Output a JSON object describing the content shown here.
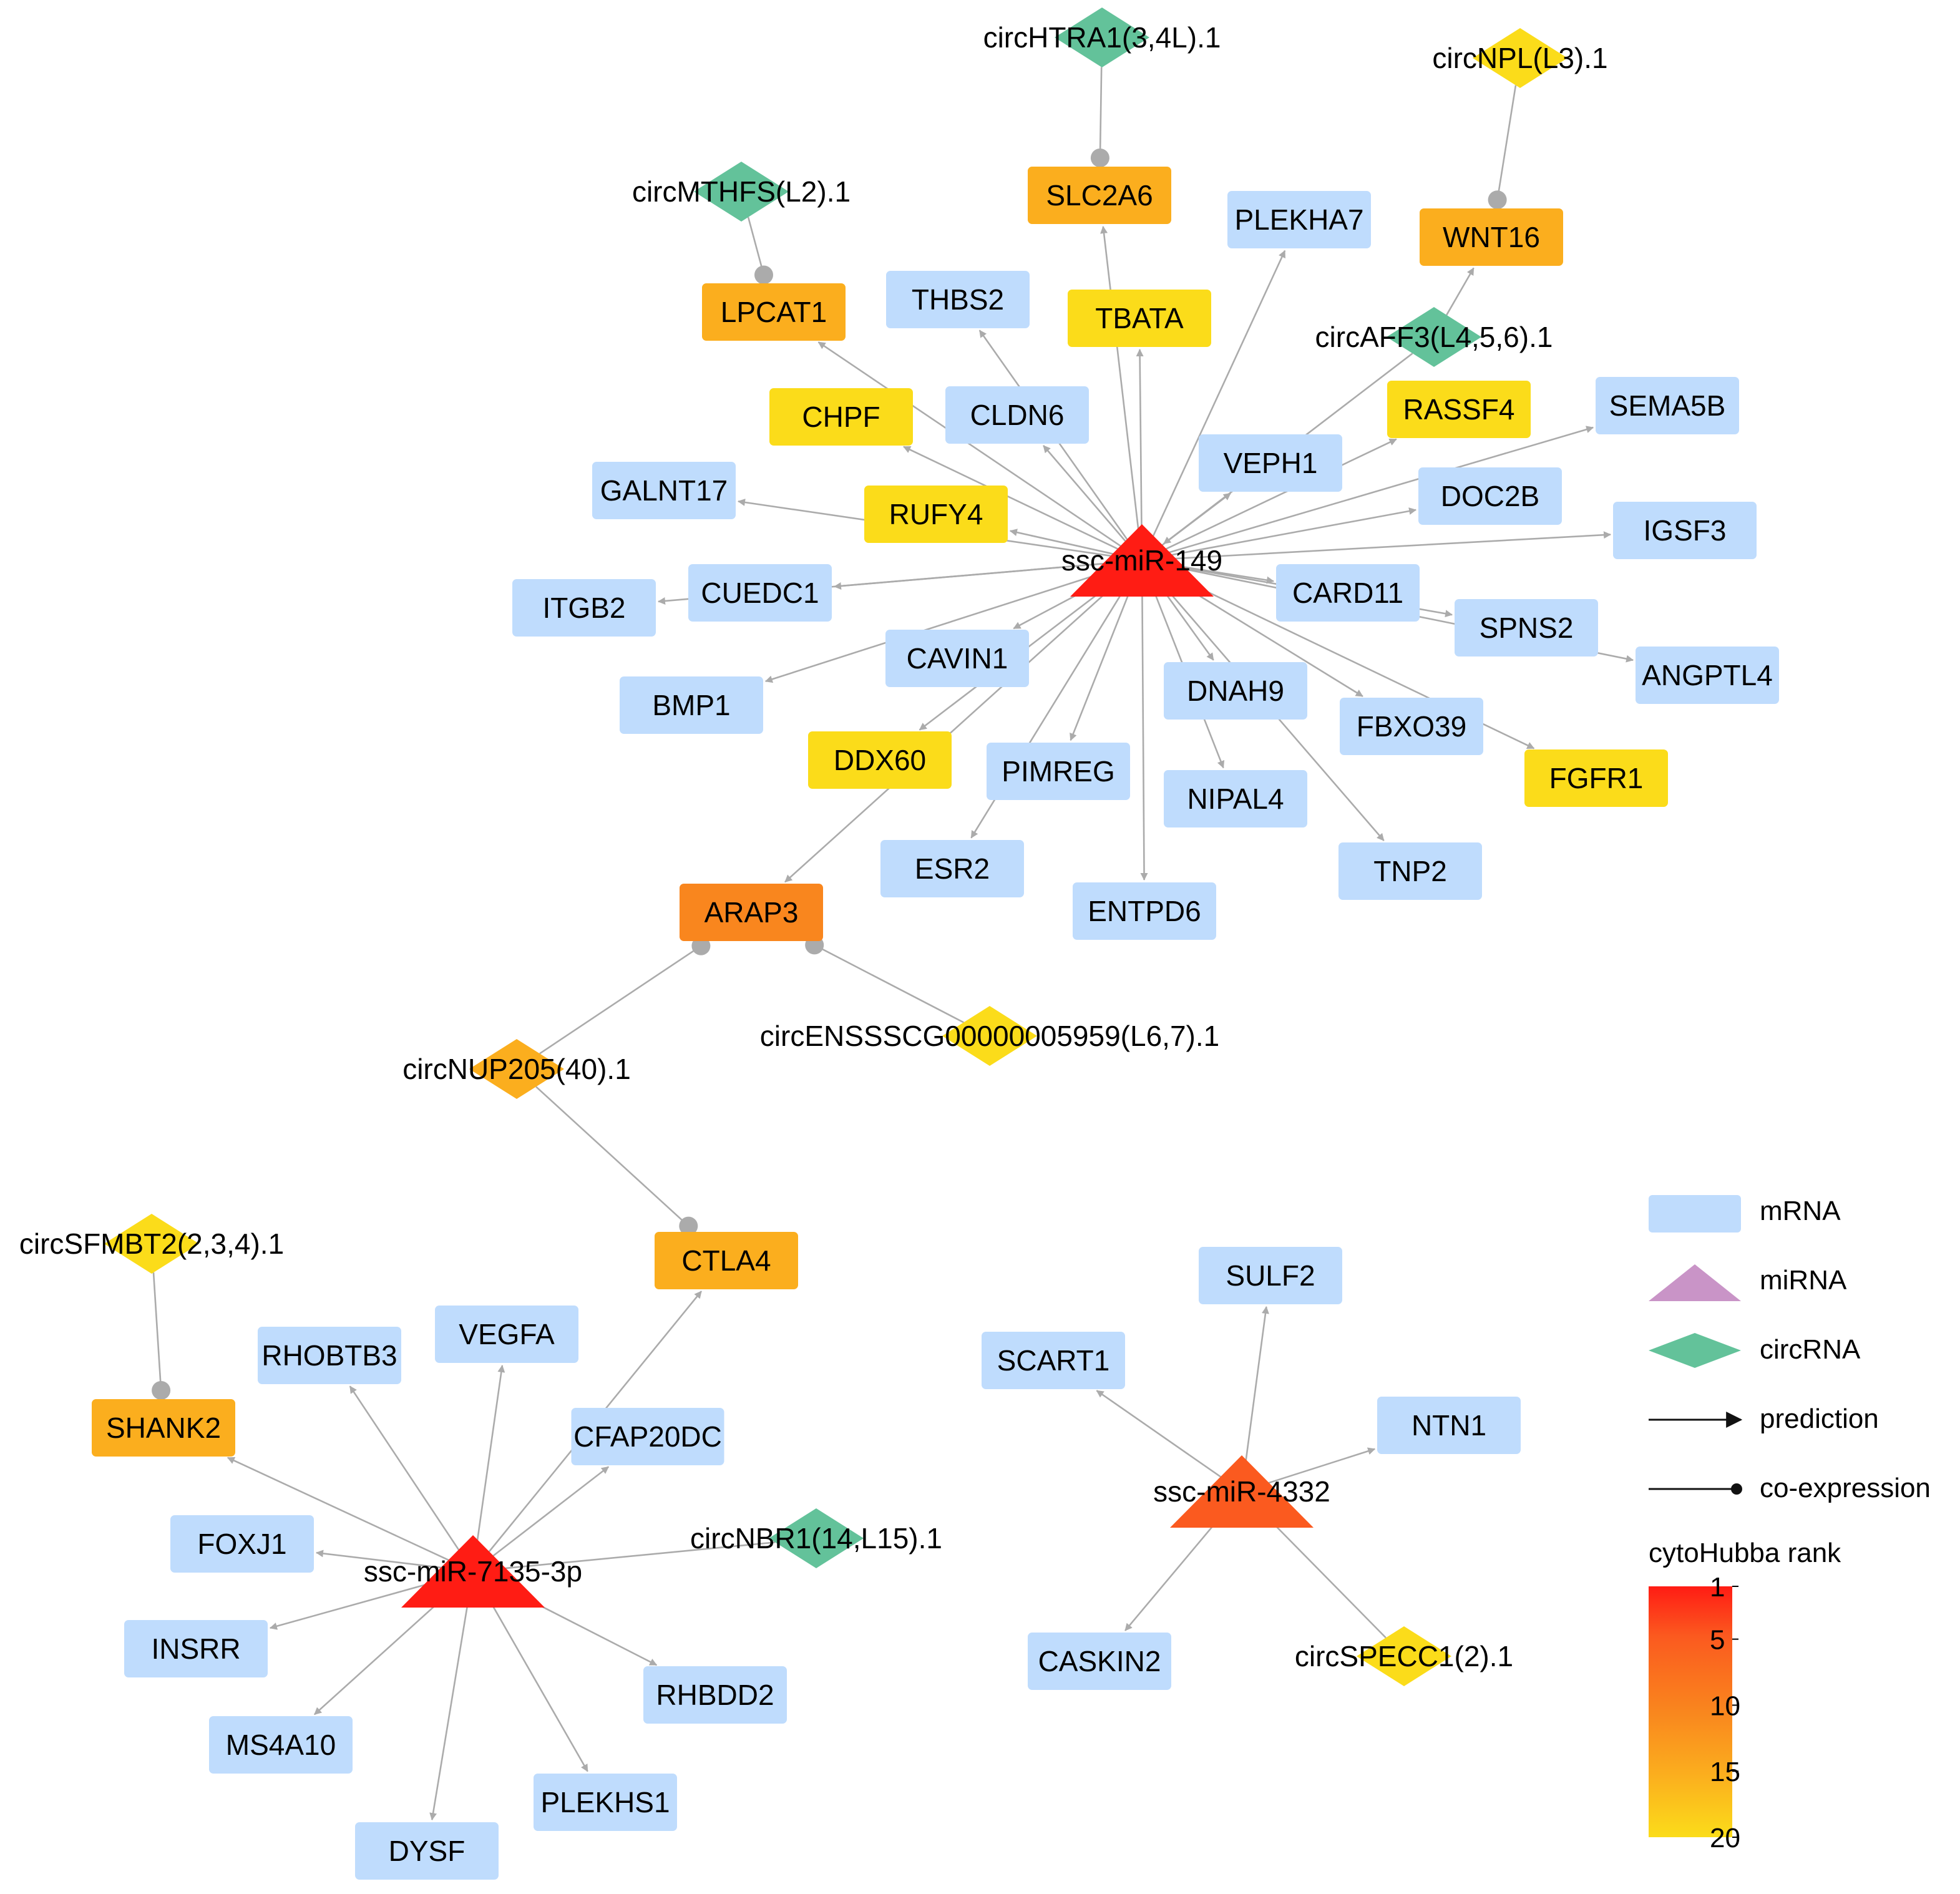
{
  "colors": {
    "mrna": "#bfdcfd",
    "mirna_legend": "#c994c7",
    "circ_legend": "#63c29a",
    "circ_green": "#63c29a",
    "rank1": "#ff1c14",
    "rank5": "#fb5a1f",
    "rank10": "#f9861e",
    "rank15": "#fbae1e",
    "rank20": "#fbdc1a",
    "edge": "#ababab",
    "legend_edge": "#111111"
  },
  "network": {
    "nodes": [
      {
        "id": "miR149",
        "label": "ssc-miR-149",
        "kind": "mirna",
        "color": "rank1"
      },
      {
        "id": "miR7135",
        "label": "ssc-miR-7135-3p",
        "kind": "mirna",
        "color": "rank1"
      },
      {
        "id": "miR4332",
        "label": "ssc-miR-4332",
        "kind": "mirna",
        "color": "rank5"
      },
      {
        "id": "circHTRA1",
        "label": "circHTRA1(3,4L).1",
        "kind": "circ",
        "color": "circ_green"
      },
      {
        "id": "circNPL",
        "label": "circNPL(L3).1",
        "kind": "circ",
        "color": "rank20"
      },
      {
        "id": "circMTHFS",
        "label": "circMTHFS(L2).1",
        "kind": "circ",
        "color": "circ_green"
      },
      {
        "id": "circAFF3",
        "label": "circAFF3(L4,5,6).1",
        "kind": "circ",
        "color": "circ_green"
      },
      {
        "id": "circENSSSCG",
        "label": "circENSSSCG00000005959(L6,7).1",
        "kind": "circ",
        "color": "rank20"
      },
      {
        "id": "circNUP205",
        "label": "circNUP205(40).1",
        "kind": "circ",
        "color": "rank15"
      },
      {
        "id": "circSFMBT2",
        "label": "circSFMBT2(2,3,4).1",
        "kind": "circ",
        "color": "rank20"
      },
      {
        "id": "circNBR1",
        "label": "circNBR1(14,L15).1",
        "kind": "circ",
        "color": "circ_green"
      },
      {
        "id": "circSPECC1",
        "label": "circSPECC1(2).1",
        "kind": "circ",
        "color": "rank20"
      },
      {
        "id": "SLC2A6",
        "label": "SLC2A6",
        "kind": "mrna",
        "color": "rank15"
      },
      {
        "id": "PLEKHA7",
        "label": "PLEKHA7",
        "kind": "mrna",
        "color": "mrna"
      },
      {
        "id": "WNT16",
        "label": "WNT16",
        "kind": "mrna",
        "color": "rank15"
      },
      {
        "id": "LPCAT1",
        "label": "LPCAT1",
        "kind": "mrna",
        "color": "rank15"
      },
      {
        "id": "THBS2",
        "label": "THBS2",
        "kind": "mrna",
        "color": "mrna"
      },
      {
        "id": "TBATA",
        "label": "TBATA",
        "kind": "mrna",
        "color": "rank20"
      },
      {
        "id": "CHPF",
        "label": "CHPF",
        "kind": "mrna",
        "color": "rank20"
      },
      {
        "id": "CLDN6",
        "label": "CLDN6",
        "kind": "mrna",
        "color": "mrna"
      },
      {
        "id": "RASSF4",
        "label": "RASSF4",
        "kind": "mrna",
        "color": "rank20"
      },
      {
        "id": "SEMA5B",
        "label": "SEMA5B",
        "kind": "mrna",
        "color": "mrna"
      },
      {
        "id": "VEPH1",
        "label": "VEPH1",
        "kind": "mrna",
        "color": "mrna"
      },
      {
        "id": "GALNT17",
        "label": "GALNT17",
        "kind": "mrna",
        "color": "mrna"
      },
      {
        "id": "RUFY4",
        "label": "RUFY4",
        "kind": "mrna",
        "color": "rank20"
      },
      {
        "id": "DOC2B",
        "label": "DOC2B",
        "kind": "mrna",
        "color": "mrna"
      },
      {
        "id": "IGSF3",
        "label": "IGSF3",
        "kind": "mrna",
        "color": "mrna"
      },
      {
        "id": "CUEDC1",
        "label": "CUEDC1",
        "kind": "mrna",
        "color": "mrna"
      },
      {
        "id": "ITGB2",
        "label": "ITGB2",
        "kind": "mrna",
        "color": "mrna"
      },
      {
        "id": "CARD11",
        "label": "CARD11",
        "kind": "mrna",
        "color": "mrna"
      },
      {
        "id": "SPNS2",
        "label": "SPNS2",
        "kind": "mrna",
        "color": "mrna"
      },
      {
        "id": "ANGPTL4",
        "label": "ANGPTL4",
        "kind": "mrna",
        "color": "mrna"
      },
      {
        "id": "CAVIN1",
        "label": "CAVIN1",
        "kind": "mrna",
        "color": "mrna"
      },
      {
        "id": "BMP1",
        "label": "BMP1",
        "kind": "mrna",
        "color": "mrna"
      },
      {
        "id": "DNAH9",
        "label": "DNAH9",
        "kind": "mrna",
        "color": "mrna"
      },
      {
        "id": "FBXO39",
        "label": "FBXO39",
        "kind": "mrna",
        "color": "mrna"
      },
      {
        "id": "DDX60",
        "label": "DDX60",
        "kind": "mrna",
        "color": "rank20"
      },
      {
        "id": "PIMREG",
        "label": "PIMREG",
        "kind": "mrna",
        "color": "mrna"
      },
      {
        "id": "NIPAL4",
        "label": "NIPAL4",
        "kind": "mrna",
        "color": "mrna"
      },
      {
        "id": "FGFR1",
        "label": "FGFR1",
        "kind": "mrna",
        "color": "rank20"
      },
      {
        "id": "ESR2",
        "label": "ESR2",
        "kind": "mrna",
        "color": "mrna"
      },
      {
        "id": "TNP2",
        "label": "TNP2",
        "kind": "mrna",
        "color": "mrna"
      },
      {
        "id": "ENTPD6",
        "label": "ENTPD6",
        "kind": "mrna",
        "color": "mrna"
      },
      {
        "id": "ARAP3",
        "label": "ARAP3",
        "kind": "mrna",
        "color": "rank10"
      },
      {
        "id": "CTLA4",
        "label": "CTLA4",
        "kind": "mrna",
        "color": "rank15"
      },
      {
        "id": "SHANK2",
        "label": "SHANK2",
        "kind": "mrna",
        "color": "rank15"
      },
      {
        "id": "RHOBTB3",
        "label": "RHOBTB3",
        "kind": "mrna",
        "color": "mrna"
      },
      {
        "id": "VEGFA",
        "label": "VEGFA",
        "kind": "mrna",
        "color": "mrna"
      },
      {
        "id": "CFAP20DC",
        "label": "CFAP20DC",
        "kind": "mrna",
        "color": "mrna"
      },
      {
        "id": "FOXJ1",
        "label": "FOXJ1",
        "kind": "mrna",
        "color": "mrna"
      },
      {
        "id": "INSRR",
        "label": "INSRR",
        "kind": "mrna",
        "color": "mrna"
      },
      {
        "id": "MS4A10",
        "label": "MS4A10",
        "kind": "mrna",
        "color": "mrna"
      },
      {
        "id": "DYSF",
        "label": "DYSF",
        "kind": "mrna",
        "color": "mrna"
      },
      {
        "id": "PLEKHS1",
        "label": "PLEKHS1",
        "kind": "mrna",
        "color": "mrna"
      },
      {
        "id": "RHBDD2",
        "label": "RHBDD2",
        "kind": "mrna",
        "color": "mrna"
      },
      {
        "id": "SULF2",
        "label": "SULF2",
        "kind": "mrna",
        "color": "mrna"
      },
      {
        "id": "SCART1",
        "label": "SCART1",
        "kind": "mrna",
        "color": "mrna"
      },
      {
        "id": "NTN1",
        "label": "NTN1",
        "kind": "mrna",
        "color": "mrna"
      },
      {
        "id": "CASKIN2",
        "label": "CASKIN2",
        "kind": "mrna",
        "color": "mrna"
      }
    ],
    "edges": [
      {
        "from": "circHTRA1",
        "to": "SLC2A6",
        "type": "co-expression"
      },
      {
        "from": "circNPL",
        "to": "WNT16",
        "type": "co-expression"
      },
      {
        "from": "circMTHFS",
        "to": "LPCAT1",
        "type": "co-expression"
      },
      {
        "from": "circNUP205",
        "to": "ARAP3",
        "type": "co-expression"
      },
      {
        "from": "circENSSSCG",
        "to": "ARAP3",
        "type": "co-expression"
      },
      {
        "from": "circNUP205",
        "to": "CTLA4",
        "type": "co-expression"
      },
      {
        "from": "circSFMBT2",
        "to": "SHANK2",
        "type": "co-expression"
      },
      {
        "from": "circAFF3",
        "to": "WNT16",
        "type": "prediction"
      },
      {
        "from": "circAFF3",
        "to": "miR149",
        "type": "prediction"
      },
      {
        "from": "miR149",
        "to": "LPCAT1",
        "type": "prediction"
      },
      {
        "from": "miR149",
        "to": "SLC2A6",
        "type": "prediction"
      },
      {
        "from": "miR149",
        "to": "PLEKHA7",
        "type": "prediction"
      },
      {
        "from": "miR149",
        "to": "THBS2",
        "type": "prediction"
      },
      {
        "from": "miR149",
        "to": "TBATA",
        "type": "prediction"
      },
      {
        "from": "miR149",
        "to": "CHPF",
        "type": "prediction"
      },
      {
        "from": "miR149",
        "to": "CLDN6",
        "type": "prediction"
      },
      {
        "from": "miR149",
        "to": "RASSF4",
        "type": "prediction"
      },
      {
        "from": "miR149",
        "to": "SEMA5B",
        "type": "prediction"
      },
      {
        "from": "miR149",
        "to": "VEPH1",
        "type": "prediction"
      },
      {
        "from": "miR149",
        "to": "GALNT17",
        "type": "prediction"
      },
      {
        "from": "miR149",
        "to": "RUFY4",
        "type": "prediction"
      },
      {
        "from": "miR149",
        "to": "DOC2B",
        "type": "prediction"
      },
      {
        "from": "miR149",
        "to": "IGSF3",
        "type": "prediction"
      },
      {
        "from": "miR149",
        "to": "CUEDC1",
        "type": "prediction"
      },
      {
        "from": "miR149",
        "to": "ITGB2",
        "type": "prediction"
      },
      {
        "from": "miR149",
        "to": "CARD11",
        "type": "prediction"
      },
      {
        "from": "miR149",
        "to": "SPNS2",
        "type": "prediction"
      },
      {
        "from": "miR149",
        "to": "ANGPTL4",
        "type": "prediction"
      },
      {
        "from": "miR149",
        "to": "CAVIN1",
        "type": "prediction"
      },
      {
        "from": "miR149",
        "to": "BMP1",
        "type": "prediction"
      },
      {
        "from": "miR149",
        "to": "DNAH9",
        "type": "prediction"
      },
      {
        "from": "miR149",
        "to": "FBXO39",
        "type": "prediction"
      },
      {
        "from": "miR149",
        "to": "DDX60",
        "type": "prediction"
      },
      {
        "from": "miR149",
        "to": "PIMREG",
        "type": "prediction"
      },
      {
        "from": "miR149",
        "to": "NIPAL4",
        "type": "prediction"
      },
      {
        "from": "miR149",
        "to": "FGFR1",
        "type": "prediction"
      },
      {
        "from": "miR149",
        "to": "ESR2",
        "type": "prediction"
      },
      {
        "from": "miR149",
        "to": "TNP2",
        "type": "prediction"
      },
      {
        "from": "miR149",
        "to": "ENTPD6",
        "type": "prediction"
      },
      {
        "from": "miR149",
        "to": "ARAP3",
        "type": "prediction"
      },
      {
        "from": "miR7135",
        "to": "SHANK2",
        "type": "prediction"
      },
      {
        "from": "miR7135",
        "to": "RHOBTB3",
        "type": "prediction"
      },
      {
        "from": "miR7135",
        "to": "VEGFA",
        "type": "prediction"
      },
      {
        "from": "miR7135",
        "to": "CFAP20DC",
        "type": "prediction"
      },
      {
        "from": "miR7135",
        "to": "CTLA4",
        "type": "prediction"
      },
      {
        "from": "miR7135",
        "to": "FOXJ1",
        "type": "prediction"
      },
      {
        "from": "miR7135",
        "to": "INSRR",
        "type": "prediction"
      },
      {
        "from": "miR7135",
        "to": "MS4A10",
        "type": "prediction"
      },
      {
        "from": "miR7135",
        "to": "DYSF",
        "type": "prediction"
      },
      {
        "from": "miR7135",
        "to": "PLEKHS1",
        "type": "prediction"
      },
      {
        "from": "miR7135",
        "to": "RHBDD2",
        "type": "prediction"
      },
      {
        "from": "circNBR1",
        "to": "miR7135",
        "type": "co-expression-plain"
      },
      {
        "from": "miR4332",
        "to": "SULF2",
        "type": "prediction"
      },
      {
        "from": "miR4332",
        "to": "SCART1",
        "type": "prediction"
      },
      {
        "from": "miR4332",
        "to": "NTN1",
        "type": "prediction"
      },
      {
        "from": "miR4332",
        "to": "CASKIN2",
        "type": "prediction"
      },
      {
        "from": "circSPECC1",
        "to": "miR4332",
        "type": "prediction"
      }
    ]
  },
  "legend": {
    "items": [
      {
        "label": "mRNA",
        "shape": "rect"
      },
      {
        "label": "miRNA",
        "shape": "triangle"
      },
      {
        "label": "circRNA",
        "shape": "diamond"
      },
      {
        "label": "prediction",
        "shape": "arrow"
      },
      {
        "label": "co-expression",
        "shape": "dot-line"
      }
    ],
    "colorbar": {
      "title": "cytoHubba rank",
      "ticks": [
        "1",
        "5",
        "10",
        "15",
        "20"
      ]
    }
  }
}
